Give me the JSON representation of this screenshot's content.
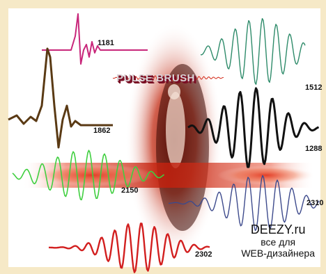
{
  "title": "PULSE BRUSH",
  "labels": {
    "w1181": "1181",
    "w1512": "1512",
    "w1862": "1862",
    "w1288": "1288",
    "w2150": "2150",
    "w2310": "2310",
    "w2302": "2302"
  },
  "brand": {
    "name": "DEEZY.ru",
    "line1": "все для",
    "line2": "WEB-дизайнера"
  },
  "colors": {
    "border": "#f6e9c7",
    "pink": "#c8267a",
    "green_top": "#2e8b6a",
    "brown": "#5a3a14",
    "black": "#111111",
    "green": "#3fcf3f",
    "blue": "#3d4a8c",
    "red": "#d21f1f",
    "glow": "#d42b1a"
  }
}
